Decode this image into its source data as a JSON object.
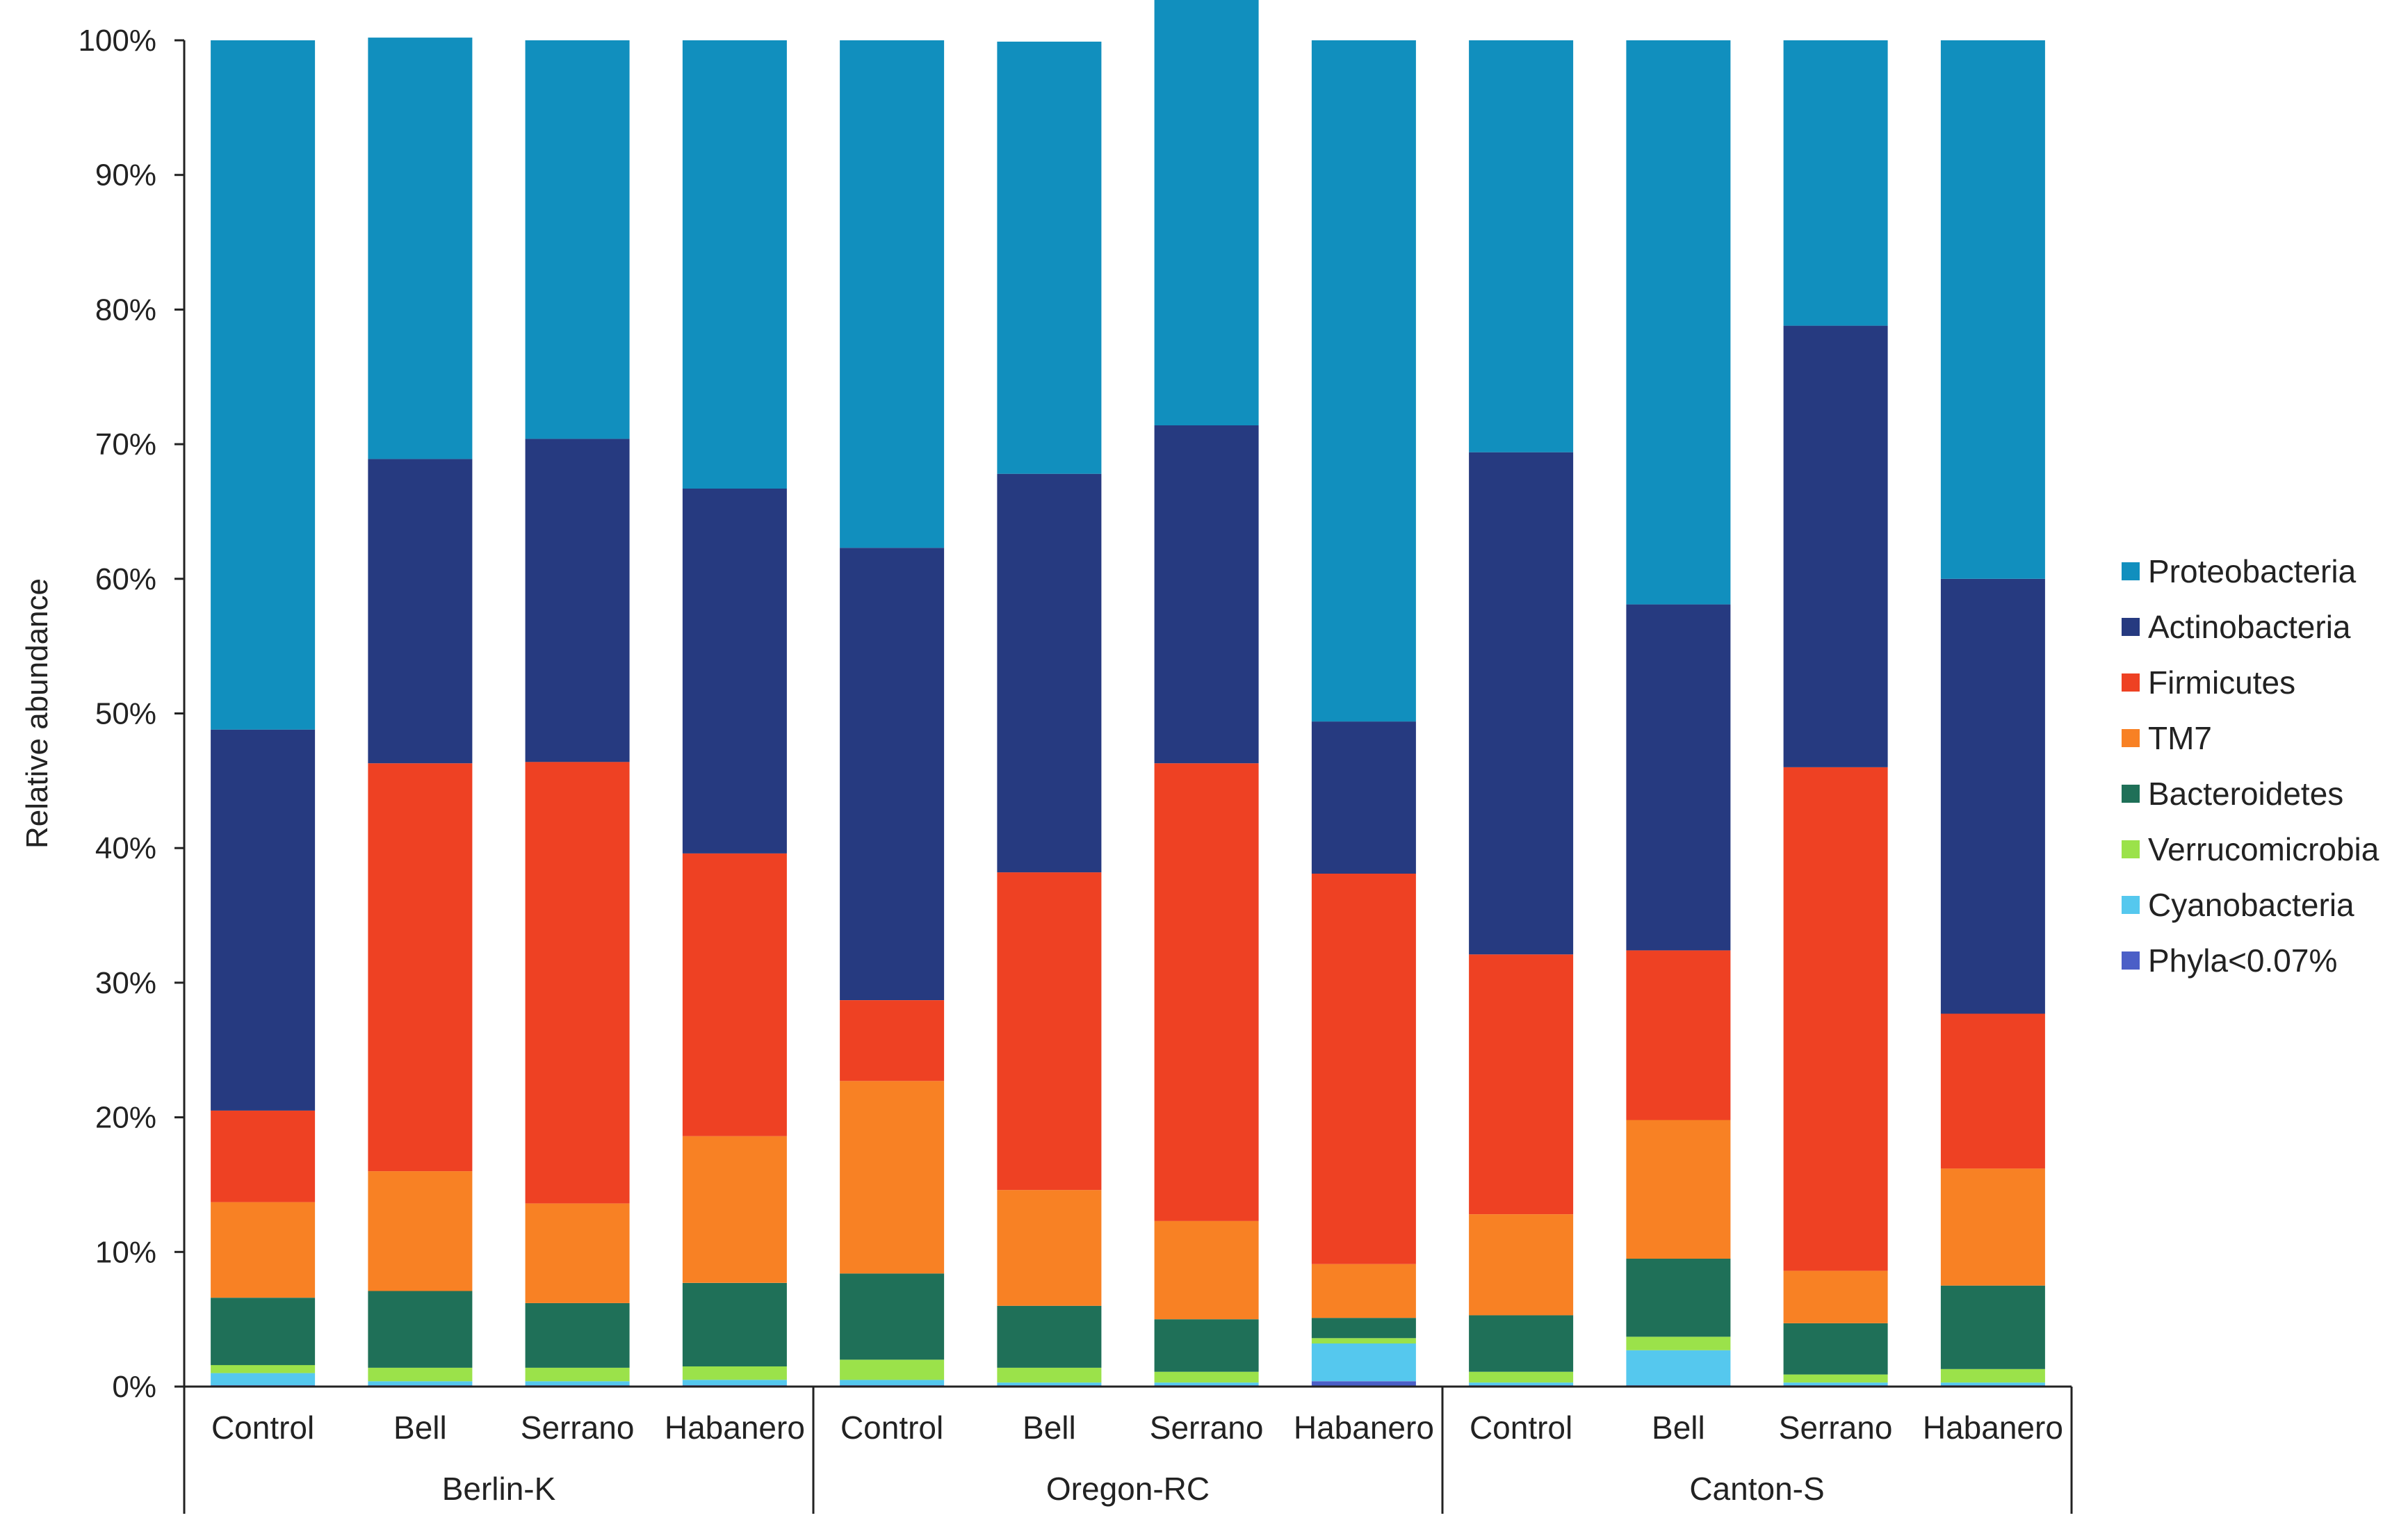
{
  "chart_data": {
    "type": "bar",
    "stacked": true,
    "title": "",
    "xlabel": "",
    "ylabel": "Relative abundance",
    "ylim": [
      0,
      100
    ],
    "y_ticks": [
      "0%",
      "10%",
      "20%",
      "30%",
      "40%",
      "50%",
      "60%",
      "70%",
      "80%",
      "90%",
      "100%"
    ],
    "legend_position": "right",
    "groups": [
      {
        "name": "Berlin-K",
        "categories": [
          "Control",
          "Bell",
          "Serrano",
          "Habanero"
        ]
      },
      {
        "name": "Oregon-RC",
        "categories": [
          "Control",
          "Bell",
          "Serrano",
          "Habanero"
        ]
      },
      {
        "name": "Canton-S",
        "categories": [
          "Control",
          "Bell",
          "Serrano",
          "Habanero"
        ]
      }
    ],
    "series": [
      {
        "name": "Phyla<0.07%",
        "color": "#4b5fc7",
        "values": [
          0.1,
          0.1,
          0.1,
          0.1,
          0.1,
          0.1,
          0.1,
          0.4,
          0.1,
          0.1,
          0.1,
          0.1
        ]
      },
      {
        "name": "Cyanobacteria",
        "color": "#55c8ee",
        "values": [
          0.9,
          0.3,
          0.3,
          0.4,
          0.4,
          0.2,
          0.2,
          2.8,
          0.2,
          2.6,
          0.2,
          0.2
        ]
      },
      {
        "name": "Verrucomicrobia",
        "color": "#9be24a",
        "values": [
          0.6,
          1.0,
          1.0,
          1.0,
          1.5,
          1.1,
          0.8,
          0.4,
          0.8,
          1.0,
          0.6,
          1.0
        ]
      },
      {
        "name": "Bacteroidetes",
        "color": "#1f7058",
        "values": [
          5.0,
          5.7,
          4.8,
          6.2,
          6.4,
          4.6,
          3.9,
          1.5,
          4.2,
          5.8,
          3.8,
          6.2
        ]
      },
      {
        "name": "TM7",
        "color": "#f88124",
        "values": [
          7.1,
          8.9,
          7.4,
          10.9,
          14.3,
          8.6,
          7.3,
          4.0,
          7.5,
          10.3,
          3.9,
          8.7
        ]
      },
      {
        "name": "Firmicutes",
        "color": "#ee4123",
        "values": [
          6.8,
          30.3,
          32.8,
          21.0,
          6.0,
          23.6,
          34.0,
          29.0,
          19.3,
          12.6,
          37.4,
          11.5
        ]
      },
      {
        "name": "Actinobacteria",
        "color": "#263a80",
        "values": [
          28.3,
          22.6,
          24.0,
          27.1,
          33.6,
          29.6,
          25.1,
          11.3,
          37.3,
          25.7,
          32.8,
          32.3
        ]
      },
      {
        "name": "Proteobacteria",
        "color": "#118fbe",
        "values": [
          51.2,
          31.3,
          29.6,
          33.3,
          37.7,
          32.1,
          31.8,
          50.6,
          30.6,
          41.9,
          21.2,
          40.0
        ]
      }
    ],
    "legend_order": [
      "Proteobacteria",
      "Actinobacteria",
      "Firmicutes",
      "TM7",
      "Bacteroidetes",
      "Verrucomicrobia",
      "Cyanobacteria",
      "Phyla<0.07%"
    ]
  }
}
